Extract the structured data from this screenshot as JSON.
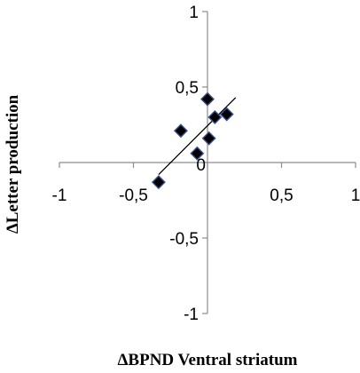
{
  "chart_data": {
    "type": "scatter",
    "xlabel": "ΔBPND Ventral striatum",
    "ylabel": "ΔLetter production",
    "xlim": [
      -1,
      1
    ],
    "ylim": [
      -1,
      1
    ],
    "x_ticks": [
      -1,
      -0.5,
      0,
      0.5,
      1
    ],
    "y_ticks": [
      -1,
      -0.5,
      0,
      0.5,
      1
    ],
    "x_tick_labels": [
      "-1",
      "-0,5",
      "0",
      "0,5",
      "1"
    ],
    "y_tick_labels": [
      "-1",
      "-0,5",
      "0,5",
      "1"
    ],
    "grid": false,
    "legend": "none",
    "marker": "diamond",
    "marker_color": "#000000",
    "marker_edge_color": "#3b4f8c",
    "points": [
      {
        "x": -0.33,
        "y": -0.13
      },
      {
        "x": -0.18,
        "y": 0.21
      },
      {
        "x": -0.07,
        "y": 0.06
      },
      {
        "x": 0.0,
        "y": 0.42
      },
      {
        "x": 0.01,
        "y": 0.16
      },
      {
        "x": 0.05,
        "y": 0.3
      },
      {
        "x": 0.13,
        "y": 0.32
      }
    ],
    "trendline": {
      "x": [
        -0.33,
        0.19
      ],
      "y": [
        -0.08,
        0.43
      ]
    }
  }
}
